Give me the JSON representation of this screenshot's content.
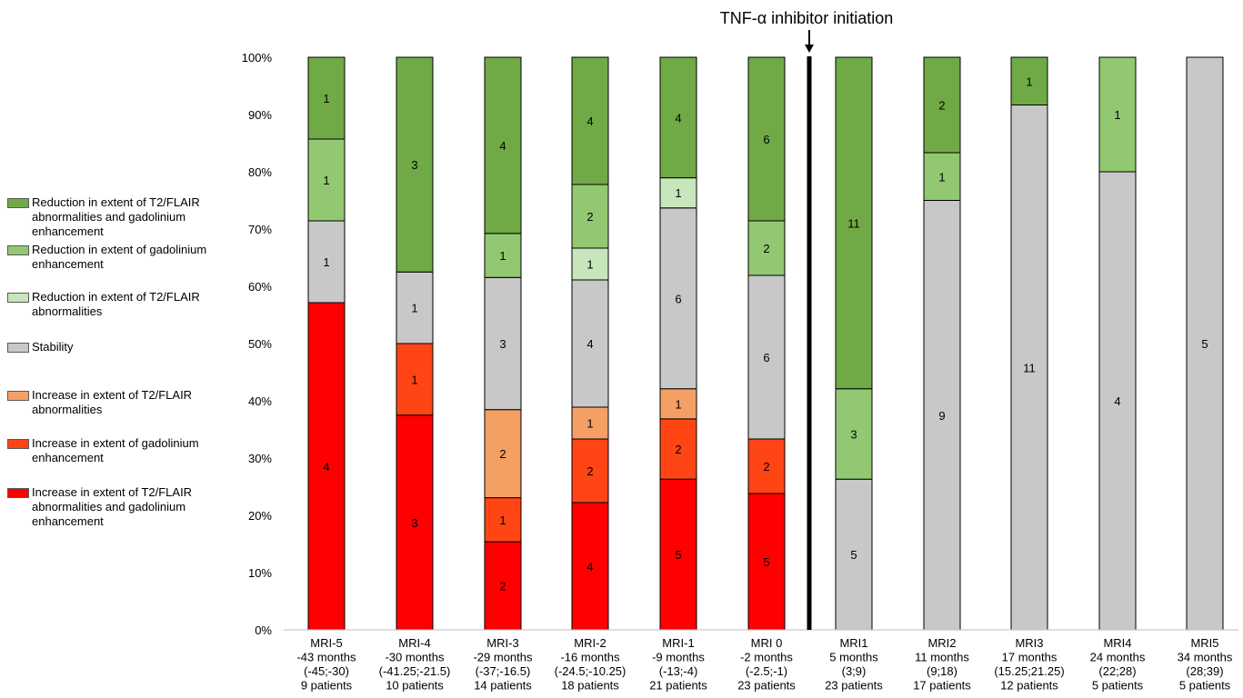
{
  "chart_data": {
    "type": "bar",
    "stacked": "percent",
    "annotation": "TNF-α inhibitor initiation",
    "ylim": [
      0,
      100
    ],
    "y_ticks": [
      "0%",
      "10%",
      "20%",
      "30%",
      "40%",
      "50%",
      "60%",
      "70%",
      "80%",
      "90%",
      "100%"
    ],
    "legend_position": "left",
    "categories": [
      {
        "lines": [
          "MRI-5",
          "-43 months",
          "(-45;-30)",
          "9 patients"
        ],
        "total": 7
      },
      {
        "lines": [
          "MRI-4",
          "-30 months",
          "(-41.25;-21.5)",
          "10 patients"
        ],
        "total": 8
      },
      {
        "lines": [
          "MRI-3",
          "-29 months",
          "(-37;-16.5)",
          "14 patients"
        ],
        "total": 13
      },
      {
        "lines": [
          "MRI-2",
          "-16 months",
          "(-24.5;-10.25)",
          "18 patients"
        ],
        "total": 18
      },
      {
        "lines": [
          "MRI-1",
          "-9 months",
          "(-13;-4)",
          "21 patients"
        ],
        "total": 19
      },
      {
        "lines": [
          "MRI 0",
          "-2 months",
          "(-2.5;-1)",
          "23 patients"
        ],
        "total": 21
      },
      {
        "lines": [
          "MRI1",
          "5 months",
          "(3;9)",
          "23 patients"
        ],
        "total": 19
      },
      {
        "lines": [
          "MRI2",
          "11 months",
          "(9;18)",
          "17 patients"
        ],
        "total": 12
      },
      {
        "lines": [
          "MRI3",
          "17 months",
          "(15.25;21.25)",
          "12 patients"
        ],
        "total": 12
      },
      {
        "lines": [
          "MRI4",
          "24 months",
          "(22;28)",
          "5 patients"
        ],
        "total": 5
      },
      {
        "lines": [
          "MRI5",
          "34 months",
          "(28;39)",
          "5 patients"
        ],
        "total": 5
      }
    ],
    "series": [
      {
        "name": "Increase in extent of T2/FLAIR abnormalities and gadolinium enhancement",
        "color": "#ff0000",
        "values": [
          4,
          3,
          2,
          4,
          5,
          5,
          0,
          0,
          0,
          0,
          0
        ]
      },
      {
        "name": "Increase in extent of gadolinium enhancement",
        "color": "#ff4513",
        "values": [
          0,
          1,
          1,
          2,
          2,
          2,
          0,
          0,
          0,
          0,
          0
        ]
      },
      {
        "name": "Increase in extent of T2/FLAIR abnormalities",
        "color": "#f4a064",
        "values": [
          0,
          0,
          2,
          1,
          1,
          0,
          0,
          0,
          0,
          0,
          0
        ]
      },
      {
        "name": "Stability",
        "color": "#c8c8c8",
        "values": [
          1,
          1,
          3,
          4,
          6,
          6,
          5,
          9,
          11,
          4,
          5
        ]
      },
      {
        "name": "Reduction in extent of T2/FLAIR abnormalities",
        "color": "#c8e6bc",
        "values": [
          0,
          0,
          0,
          1,
          1,
          0,
          0,
          0,
          0,
          0,
          0
        ]
      },
      {
        "name": "Reduction in extent of gadolinium enhancement",
        "color": "#93c872",
        "values": [
          1,
          0,
          1,
          2,
          0,
          2,
          3,
          1,
          0,
          1,
          0
        ]
      },
      {
        "name": "Reduction in extent of T2/FLAIR abnormalities and gadolinium enhancement",
        "color": "#6faa46",
        "values": [
          1,
          3,
          4,
          4,
          4,
          6,
          11,
          2,
          1,
          0,
          0
        ]
      }
    ],
    "legend": [
      {
        "label": "Reduction in extent of T2/FLAIR abnormalities and gadolinium enhancement",
        "color": "#6faa46"
      },
      {
        "label": "Reduction in extent of gadolinium enhancement",
        "color": "#93c872"
      },
      {
        "label": "Reduction in extent of T2/FLAIR abnormalities",
        "color": "#c8e6bc"
      },
      {
        "label": "Stability",
        "color": "#c8c8c8"
      },
      {
        "label": "Increase in extent of T2/FLAIR abnormalities",
        "color": "#f4a064"
      },
      {
        "label": "Increase in extent of gadolinium enhancement",
        "color": "#ff4513"
      },
      {
        "label": "Increase in extent of T2/FLAIR abnormalities and gadolinium enhancement",
        "color": "#ff0000"
      }
    ]
  }
}
